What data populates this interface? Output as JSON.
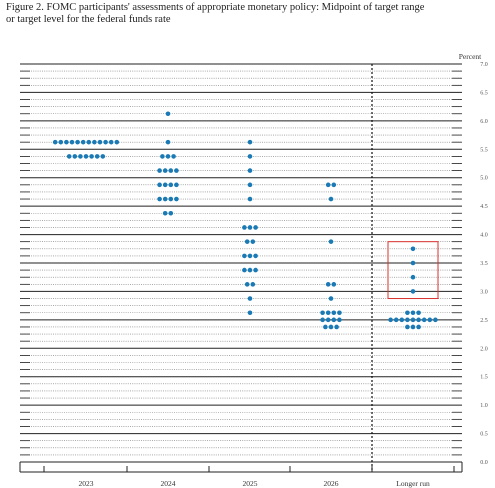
{
  "chart_data": {
    "type": "scatter",
    "title_line1": "Figure 2.  FOMC participants' assessments of appropriate monetary policy:  Midpoint of target range",
    "title_line2": "or target level for the federal funds rate",
    "ylabel": "Percent",
    "ylim": [
      0,
      7
    ],
    "yticks": [
      "0.0",
      "0.5",
      "1.0",
      "1.5",
      "2.0",
      "2.5",
      "3.0",
      "3.5",
      "4.0",
      "4.5",
      "5.0",
      "5.5",
      "6.0",
      "6.5",
      "7.0"
    ],
    "categories": [
      "2023",
      "2024",
      "2025",
      "2026",
      "Longer run"
    ],
    "dots": [
      {
        "category": "2023",
        "rates": [
          {
            "value": 5.625,
            "count": 12
          },
          {
            "value": 5.375,
            "count": 7
          }
        ]
      },
      {
        "category": "2024",
        "rates": [
          {
            "value": 6.125,
            "count": 1
          },
          {
            "value": 5.625,
            "count": 1
          },
          {
            "value": 5.375,
            "count": 3
          },
          {
            "value": 5.125,
            "count": 4
          },
          {
            "value": 4.875,
            "count": 4
          },
          {
            "value": 4.625,
            "count": 4
          },
          {
            "value": 4.375,
            "count": 2
          }
        ]
      },
      {
        "category": "2025",
        "rates": [
          {
            "value": 5.625,
            "count": 1
          },
          {
            "value": 5.375,
            "count": 1
          },
          {
            "value": 5.125,
            "count": 1
          },
          {
            "value": 4.875,
            "count": 1
          },
          {
            "value": 4.625,
            "count": 1
          },
          {
            "value": 4.125,
            "count": 3
          },
          {
            "value": 3.875,
            "count": 2
          },
          {
            "value": 3.625,
            "count": 3
          },
          {
            "value": 3.375,
            "count": 3
          },
          {
            "value": 3.125,
            "count": 2
          },
          {
            "value": 2.875,
            "count": 1
          },
          {
            "value": 2.625,
            "count": 1
          }
        ]
      },
      {
        "category": "2026",
        "rates": [
          {
            "value": 4.875,
            "count": 2
          },
          {
            "value": 4.625,
            "count": 1
          },
          {
            "value": 3.875,
            "count": 1
          },
          {
            "value": 3.125,
            "count": 2
          },
          {
            "value": 2.875,
            "count": 1
          },
          {
            "value": 2.625,
            "count": 4
          },
          {
            "value": 2.5,
            "count": 4
          },
          {
            "value": 2.375,
            "count": 3
          }
        ]
      },
      {
        "category": "Longer run",
        "rates": [
          {
            "value": 3.75,
            "count": 1
          },
          {
            "value": 3.5,
            "count": 1
          },
          {
            "value": 3.25,
            "count": 1
          },
          {
            "value": 3.0,
            "count": 1
          },
          {
            "value": 2.625,
            "count": 3
          },
          {
            "value": 2.5,
            "count": 9
          },
          {
            "value": 2.375,
            "count": 3
          }
        ]
      }
    ],
    "highlight": {
      "category": "Longer run",
      "ymin": 2.875,
      "ymax": 3.875,
      "color": "#d9302c"
    },
    "divider_after": "2026",
    "grid": true,
    "colors": {
      "dot": "#1a7ab5",
      "grid": "#222222",
      "minor_grid": "#777777",
      "highlight": "#d9302c"
    }
  }
}
